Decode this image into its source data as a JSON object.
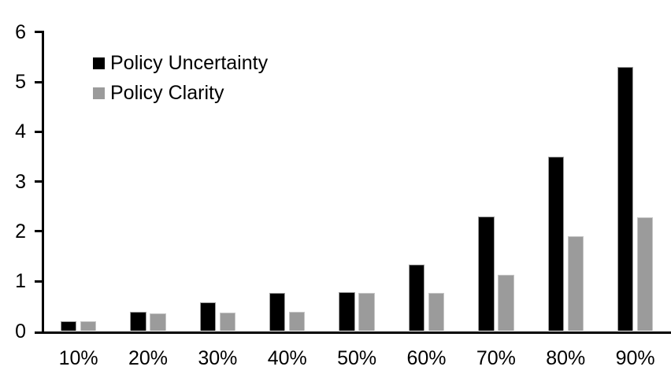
{
  "chart_data": {
    "type": "bar",
    "title": "",
    "xlabel": "",
    "ylabel": "",
    "categories": [
      "10%",
      "20%",
      "30%",
      "40%",
      "50%",
      "60%",
      "70%",
      "80%",
      "90%"
    ],
    "series": [
      {
        "name": "Policy Uncertainty",
        "color": "#000000",
        "values": [
          0.2,
          0.38,
          0.57,
          0.76,
          0.78,
          1.33,
          2.3,
          3.5,
          5.3
        ]
      },
      {
        "name": "Policy Clarity",
        "color": "#9B9B9B",
        "values": [
          0.19,
          0.36,
          0.37,
          0.38,
          0.76,
          0.76,
          1.13,
          1.9,
          2.28
        ]
      }
    ],
    "ylim": [
      0,
      6
    ],
    "yticks": [
      0,
      1,
      2,
      3,
      4,
      5,
      6
    ],
    "grid": false,
    "legend_position": "top-left-inside",
    "axis_color": "#000000",
    "background_color": "#FFFFFF"
  }
}
